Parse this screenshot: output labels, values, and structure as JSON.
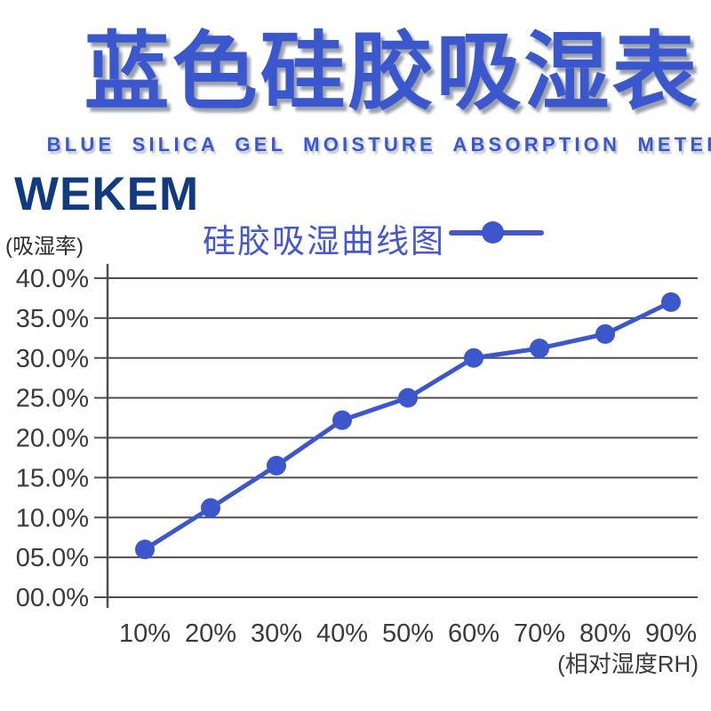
{
  "header": {
    "title": "蓝色硅胶吸湿表",
    "subtitle": "BLUE SILICA GEL MOISTURE ABSORPTION METER"
  },
  "brand": {
    "logo_text": "WEKEM"
  },
  "legend": {
    "label": "硅胶吸湿曲线图",
    "marker": "line-with-dot"
  },
  "axes": {
    "y_unit_label": "(吸湿率)",
    "x_unit_label": "(相对湿度RH)"
  },
  "colors": {
    "title_blue": "#3a57cd",
    "brand_navy": "#123a80",
    "legend_blue": "#4457cd",
    "line_blue": "#3c56cb",
    "grid_gray": "#4f4f4f",
    "tick_text": "#3a3a3a"
  },
  "chart_data": {
    "type": "line",
    "title": "硅胶吸湿曲线图",
    "xlabel": "(相对湿度RH)",
    "ylabel": "(吸湿率)",
    "x": [
      10,
      20,
      30,
      40,
      50,
      60,
      70,
      80,
      90
    ],
    "x_tick_labels": [
      "10%",
      "20%",
      "30%",
      "40%",
      "50%",
      "60%",
      "70%",
      "80%",
      "90%"
    ],
    "values": [
      6.0,
      11.2,
      16.5,
      22.2,
      25.0,
      30.0,
      31.2,
      33.0,
      37.0
    ],
    "y_tick_labels": [
      "40.0%",
      "35.0%",
      "30.0%",
      "25.0%",
      "20.0%",
      "15.0%",
      "10.0%",
      "05.0%",
      "00.0%"
    ],
    "ylim": [
      0,
      40
    ],
    "y_step": 5,
    "grid": "horizontal",
    "legend_position": "top",
    "marker": "circle",
    "line_color": "#3c56cb",
    "grid_color": "#4f4f4f",
    "tick_color": "#3a3a3a"
  }
}
